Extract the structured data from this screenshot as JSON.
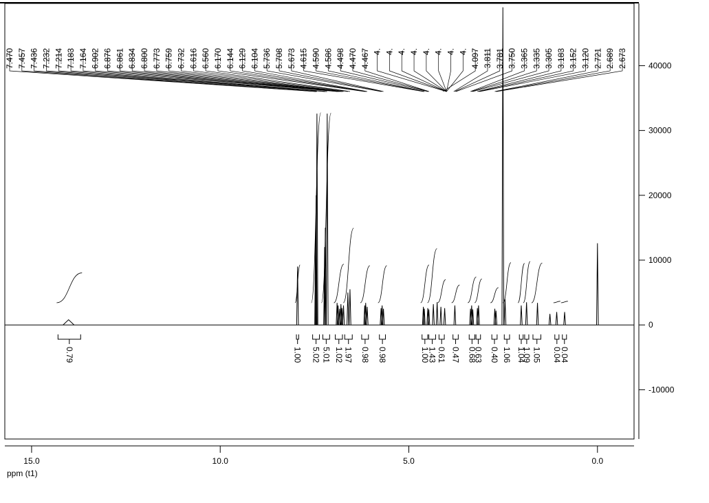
{
  "chart_data": {
    "type": "nmr",
    "xlabel": "ppm (t1)",
    "xlim": [
      15.71,
      -0.97
    ],
    "xticks": [
      {
        "value": 15,
        "label": "15.0"
      },
      {
        "value": 10,
        "label": "10.0"
      },
      {
        "value": 5,
        "label": "5.0"
      },
      {
        "value": 0,
        "label": "0.0"
      }
    ],
    "ylim": [
      -17600,
      49600
    ],
    "yticks": [
      -10000,
      0,
      10000,
      20000,
      30000,
      40000
    ],
    "color": "#000000",
    "peaks": {
      "x": [
        14.02,
        7.95,
        7.47,
        7.457,
        7.436,
        7.232,
        7.214,
        7.164,
        6.902,
        6.876,
        6.834,
        6.8,
        6.773,
        6.732,
        6.616,
        6.56,
        6.17,
        6.144,
        6.104,
        5.736,
        5.708,
        5.673,
        4.615,
        4.59,
        4.498,
        4.47,
        4.35,
        4.25,
        4.15,
        4.05,
        3.78,
        3.365,
        3.335,
        3.305,
        3.183,
        3.152,
        2.721,
        2.689,
        2.507,
        2.45,
        2.02,
        1.88,
        1.59,
        1.26,
        1.08,
        0.87,
        0.0
      ],
      "values": [
        800,
        9000,
        15000,
        20000,
        32600,
        12000,
        15000,
        32600,
        3400,
        3000,
        2500,
        3200,
        2600,
        3000,
        5000,
        5500,
        3000,
        3400,
        2800,
        2600,
        3000,
        2500,
        2800,
        2500,
        2600,
        2400,
        3200,
        3500,
        2800,
        2600,
        3000,
        2500,
        3000,
        2400,
        2600,
        3000,
        2500,
        2200,
        49000,
        4000,
        3000,
        3500,
        3400,
        1700,
        2000,
        2000,
        12600
      ]
    },
    "peak_labels": [
      "7.470",
      "7.457",
      "7.436",
      "7.232",
      "7.214",
      "7.183",
      "7.164",
      "6.902",
      "6.876",
      "6.861",
      "6.834",
      "6.800",
      "6.773",
      "6.759",
      "6.732",
      "6.616",
      "6.560",
      "6.170",
      "6.144",
      "6.129",
      "6.104",
      "5.736",
      "5.708",
      "5.673",
      "4.615",
      "4.590",
      "4.586",
      "4.498",
      "4.470",
      "4.467",
      "4.",
      "4.",
      "4.",
      "4.",
      "4.",
      "4.",
      "4.",
      "4.",
      "4.097",
      "3.811",
      "3.781",
      "3.750",
      "3.365",
      "3.335",
      "3.305",
      "3.183",
      "3.152",
      "3.120",
      "2.721",
      "2.689",
      "2.673"
    ],
    "integrals": {
      "ranges": [
        [
          14.3,
          13.7
        ],
        [
          7.98,
          7.92
        ],
        [
          7.55,
          7.37
        ],
        [
          7.28,
          7.1
        ],
        [
          6.95,
          6.76
        ],
        [
          6.7,
          6.5
        ],
        [
          6.25,
          6.07
        ],
        [
          5.78,
          5.62
        ],
        [
          4.65,
          4.5
        ],
        [
          4.47,
          4.29
        ],
        [
          4.2,
          4.06
        ],
        [
          3.83,
          3.69
        ],
        [
          3.4,
          3.25
        ],
        [
          3.22,
          3.1
        ],
        [
          2.8,
          2.66
        ],
        [
          2.47,
          2.33
        ],
        [
          2.07,
          1.97
        ],
        [
          1.93,
          1.82
        ],
        [
          1.71,
          1.5
        ],
        [
          1.13,
          1.02
        ],
        [
          0.93,
          0.82
        ]
      ],
      "values": [
        0.79,
        1.0,
        5.02,
        5.01,
        1.02,
        1.97,
        0.98,
        0.98,
        1.0,
        1.43,
        0.61,
        0.47,
        0.68,
        0.63,
        0.4,
        1.06,
        1.04,
        1.09,
        1.05,
        0.04,
        0.04
      ],
      "value_labels": [
        "0.79",
        "1.00",
        "5.02",
        "5.01",
        "1.02",
        "1.97",
        "0.98",
        "0.98",
        "1.00",
        "1.43",
        "0.61",
        "0.47",
        "0.68",
        "0.63",
        "0.40",
        "1.06",
        "1.04",
        "1.09",
        "1.05",
        "0.04",
        "0.04"
      ]
    }
  }
}
